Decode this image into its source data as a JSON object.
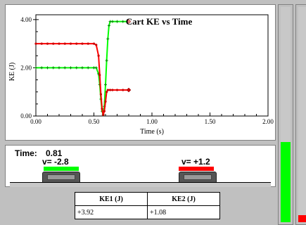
{
  "chart": {
    "title": "Cart KE vs Time",
    "xlabel": "Time (s)",
    "ylabel": "KE (J)",
    "y_ticks": [
      "0.00",
      "2.00",
      "4.00"
    ],
    "x_ticks": [
      "0.00",
      "0.50",
      "1.00",
      "1.50",
      "2.00"
    ]
  },
  "chart_data": {
    "type": "line",
    "title": "Cart KE vs Time",
    "xlabel": "Time (s)",
    "ylabel": "KE (J)",
    "xlim": [
      0,
      2
    ],
    "ylim": [
      0,
      4.2
    ],
    "series": [
      {
        "color": "#00ff00",
        "x": [
          0.0,
          0.05,
          0.1,
          0.15,
          0.2,
          0.25,
          0.3,
          0.35,
          0.4,
          0.45,
          0.5,
          0.52,
          0.54,
          0.55,
          0.56,
          0.57,
          0.58,
          0.59,
          0.6,
          0.61,
          0.62,
          0.63,
          0.64,
          0.66,
          0.7,
          0.75,
          0.8
        ],
        "y": [
          2.0,
          2.0,
          2.0,
          2.0,
          2.0,
          2.0,
          2.0,
          2.0,
          2.0,
          2.0,
          2.0,
          2.0,
          1.75,
          1.3,
          0.7,
          0.2,
          0.05,
          0.4,
          1.3,
          2.3,
          3.2,
          3.75,
          3.92,
          3.92,
          3.92,
          3.92,
          3.92
        ]
      },
      {
        "color": "#ff0000",
        "x": [
          0.0,
          0.05,
          0.1,
          0.15,
          0.2,
          0.25,
          0.3,
          0.35,
          0.4,
          0.45,
          0.5,
          0.52,
          0.54,
          0.55,
          0.56,
          0.57,
          0.58,
          0.59,
          0.6,
          0.61,
          0.62,
          0.64,
          0.66,
          0.7,
          0.75,
          0.8
        ],
        "y": [
          3.0,
          3.0,
          3.0,
          3.0,
          3.0,
          3.0,
          3.0,
          3.0,
          3.0,
          3.0,
          3.0,
          2.95,
          2.5,
          1.7,
          0.9,
          0.3,
          0.05,
          0.2,
          0.6,
          1.0,
          1.08,
          1.08,
          1.08,
          1.08,
          1.08,
          1.08
        ]
      }
    ]
  },
  "sim": {
    "time_label": "Time:",
    "time_value": "0.81",
    "cart1": {
      "velocity_label": "v= -2.8",
      "color": "#00ff00"
    },
    "cart2": {
      "velocity_label": "v= +1.2",
      "color": "#ff0000"
    }
  },
  "table": {
    "headers": [
      "KE1 (J)",
      "KE2 (J)"
    ],
    "values": [
      "+3.92",
      "+1.08"
    ]
  },
  "meters": {
    "green": {
      "color": "#00ff00",
      "level": 0.94
    },
    "red": {
      "color": "#ff0000",
      "level": 0.26
    }
  }
}
